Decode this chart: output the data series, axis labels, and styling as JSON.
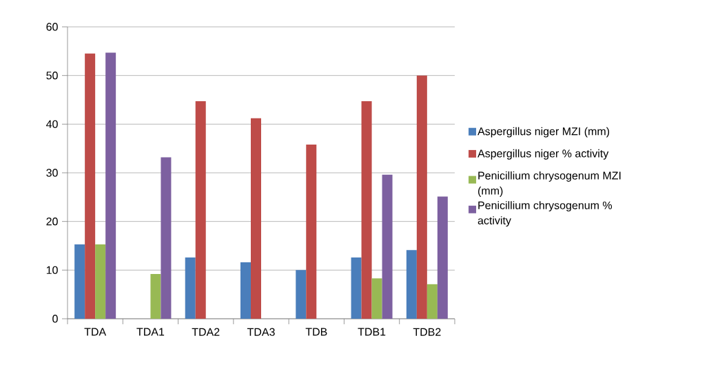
{
  "chart_data": {
    "type": "bar",
    "categories": [
      "TDA",
      "TDA1",
      "TDA2",
      "TDA3",
      "TDB",
      "TDB1",
      "TDB2"
    ],
    "series": [
      {
        "name": "Aspergillus niger MZI (mm)",
        "color": "#4a7ebb",
        "values": [
          15.3,
          0,
          12.6,
          11.6,
          10,
          12.6,
          14.1
        ]
      },
      {
        "name": "Aspergillus niger % activity",
        "color": "#be4b48",
        "values": [
          54.5,
          0,
          44.7,
          41.2,
          35.8,
          44.7,
          50
        ]
      },
      {
        "name": "Penicillium chrysogenum MZI (mm)",
        "color": "#98b954",
        "values": [
          15.3,
          9.2,
          0,
          0,
          0,
          8.3,
          7.1
        ]
      },
      {
        "name": "Penicillium chrysogenum % activity",
        "color": "#7d60a0",
        "values": [
          54.7,
          33.2,
          0,
          0,
          0,
          29.6,
          25.1
        ]
      }
    ],
    "ylim": [
      0,
      60
    ],
    "yticks": [
      0,
      10,
      20,
      30,
      40,
      50,
      60
    ],
    "grid": "y",
    "legend": "right"
  }
}
